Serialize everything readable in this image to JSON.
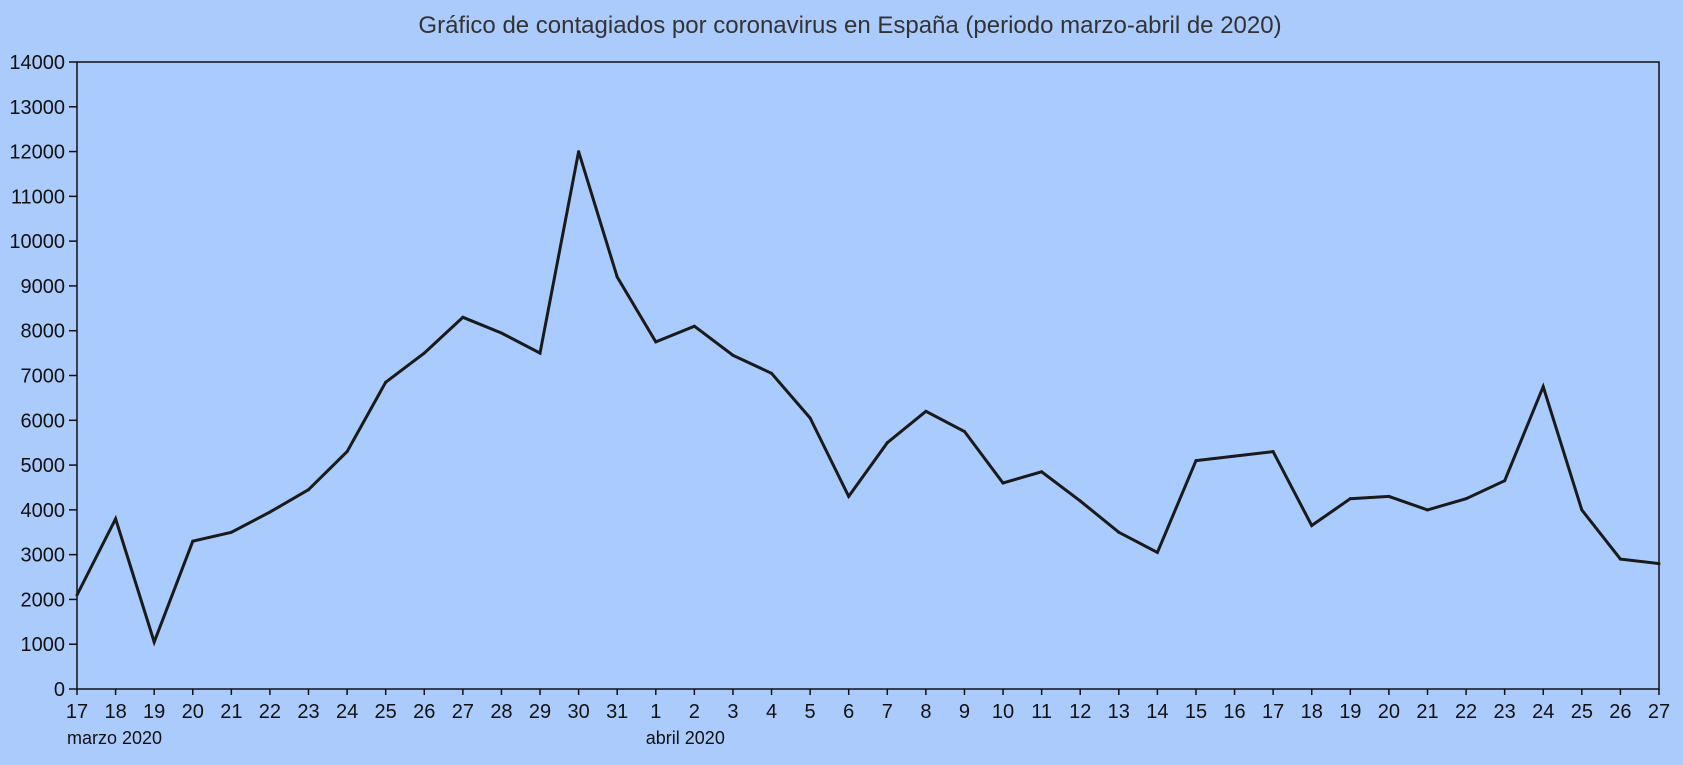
{
  "chart_data": {
    "type": "line",
    "title": "Gráfico de contagiados por coronavirus en España (periodo marzo-abril de 2020)",
    "xlabel": "",
    "ylabel": "",
    "ylim": [
      0,
      14000
    ],
    "yticks": [
      0,
      1000,
      2000,
      3000,
      4000,
      5000,
      6000,
      7000,
      8000,
      9000,
      10000,
      11000,
      12000,
      13000,
      14000
    ],
    "categories": [
      "17",
      "18",
      "19",
      "20",
      "21",
      "22",
      "23",
      "24",
      "25",
      "26",
      "27",
      "28",
      "29",
      "30",
      "31",
      "1",
      "2",
      "3",
      "4",
      "5",
      "6",
      "7",
      "8",
      "9",
      "10",
      "11",
      "12",
      "13",
      "14",
      "15",
      "16",
      "17",
      "18",
      "19",
      "20",
      "21",
      "22",
      "23",
      "24",
      "25",
      "26",
      "27"
    ],
    "period_labels": [
      {
        "text": "marzo 2020",
        "category_index": 0
      },
      {
        "text": "abril 2020",
        "category_index": 15
      }
    ],
    "series": [
      {
        "values": [
          2100,
          3800,
          1050,
          3300,
          3500,
          3950,
          4450,
          5300,
          6850,
          7500,
          8300,
          7950,
          7500,
          12000,
          9200,
          7750,
          8100,
          7450,
          7050,
          6050,
          4300,
          5500,
          6200,
          5750,
          4600,
          4850,
          4200,
          3500,
          3050,
          5100,
          5200,
          5300,
          3650,
          4250,
          4300,
          4000,
          4250,
          4650,
          6750,
          4000,
          2900,
          2800
        ]
      }
    ],
    "grid": false,
    "legend": "none",
    "colors": {
      "background": "#abcbfd",
      "plot_background": "#aacbfd",
      "line": "#1a1a1a",
      "axis": "#111111",
      "title": "#333333"
    }
  }
}
